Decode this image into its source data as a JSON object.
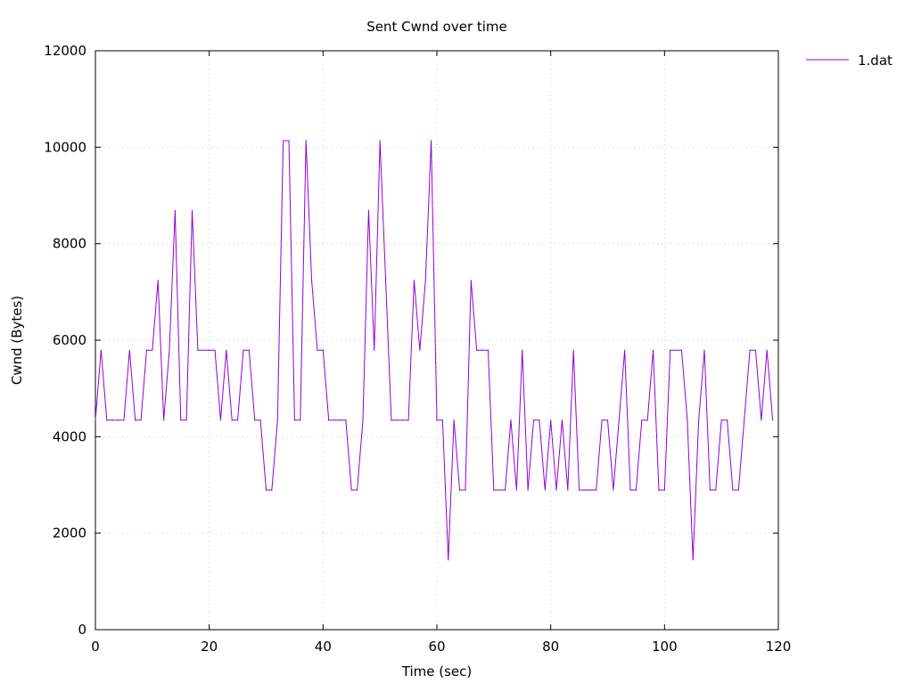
{
  "chart_data": {
    "type": "line",
    "title": "Sent Cwnd over time",
    "xlabel": "Time (sec)",
    "ylabel": "Cwnd (Bytes)",
    "xlim": [
      0,
      120
    ],
    "ylim": [
      0,
      12000
    ],
    "xticks": [
      "0",
      "20",
      "40",
      "60",
      "80",
      "100",
      "120"
    ],
    "yticks": [
      "0",
      "2000",
      "4000",
      "6000",
      "8000",
      "10000",
      "12000"
    ],
    "grid": true,
    "legend": "outside-top-right",
    "series": [
      {
        "name": "1.dat",
        "color": "#9400d3",
        "points": [
          [
            0,
            4344
          ],
          [
            1,
            5792
          ],
          [
            2,
            4344
          ],
          [
            3,
            4344
          ],
          [
            4,
            4344
          ],
          [
            5,
            4344
          ],
          [
            6,
            5792
          ],
          [
            7,
            4344
          ],
          [
            8,
            4344
          ],
          [
            9,
            5792
          ],
          [
            10,
            5792
          ],
          [
            11,
            7240
          ],
          [
            12,
            4344
          ],
          [
            13,
            5792
          ],
          [
            14,
            8688
          ],
          [
            15,
            4344
          ],
          [
            16,
            4344
          ],
          [
            17,
            8688
          ],
          [
            18,
            5792
          ],
          [
            19,
            5792
          ],
          [
            20,
            5792
          ],
          [
            21,
            5792
          ],
          [
            22,
            4344
          ],
          [
            23,
            5792
          ],
          [
            24,
            4344
          ],
          [
            25,
            4344
          ],
          [
            26,
            5792
          ],
          [
            27,
            5792
          ],
          [
            28,
            4344
          ],
          [
            29,
            4344
          ],
          [
            30,
            2896
          ],
          [
            31,
            2896
          ],
          [
            32,
            4344
          ],
          [
            33,
            10136
          ],
          [
            34,
            10136
          ],
          [
            35,
            4344
          ],
          [
            36,
            4344
          ],
          [
            37,
            10136
          ],
          [
            38,
            7240
          ],
          [
            39,
            5792
          ],
          [
            40,
            5792
          ],
          [
            41,
            4344
          ],
          [
            42,
            4344
          ],
          [
            43,
            4344
          ],
          [
            44,
            4344
          ],
          [
            45,
            2896
          ],
          [
            46,
            2896
          ],
          [
            47,
            4344
          ],
          [
            48,
            8688
          ],
          [
            49,
            5792
          ],
          [
            50,
            10136
          ],
          [
            51,
            7240
          ],
          [
            52,
            4344
          ],
          [
            53,
            4344
          ],
          [
            54,
            4344
          ],
          [
            55,
            4344
          ],
          [
            56,
            7240
          ],
          [
            57,
            5792
          ],
          [
            58,
            7240
          ],
          [
            59,
            10136
          ],
          [
            60,
            4344
          ],
          [
            61,
            4344
          ],
          [
            62,
            1448
          ],
          [
            63,
            4344
          ],
          [
            64,
            2896
          ],
          [
            65,
            2896
          ],
          [
            66,
            7240
          ],
          [
            67,
            5792
          ],
          [
            68,
            5792
          ],
          [
            69,
            5792
          ],
          [
            70,
            2896
          ],
          [
            71,
            2896
          ],
          [
            72,
            2896
          ],
          [
            73,
            4344
          ],
          [
            74,
            2896
          ],
          [
            75,
            5792
          ],
          [
            76,
            2896
          ],
          [
            77,
            4344
          ],
          [
            78,
            4344
          ],
          [
            79,
            2896
          ],
          [
            80,
            4344
          ],
          [
            81,
            2896
          ],
          [
            82,
            4344
          ],
          [
            83,
            2896
          ],
          [
            84,
            5792
          ],
          [
            85,
            2896
          ],
          [
            86,
            2896
          ],
          [
            87,
            2896
          ],
          [
            88,
            2896
          ],
          [
            89,
            4344
          ],
          [
            90,
            4344
          ],
          [
            91,
            2896
          ],
          [
            92,
            4344
          ],
          [
            93,
            5792
          ],
          [
            94,
            2896
          ],
          [
            95,
            2896
          ],
          [
            96,
            4344
          ],
          [
            97,
            4344
          ],
          [
            98,
            5792
          ],
          [
            99,
            2896
          ],
          [
            100,
            2896
          ],
          [
            101,
            5792
          ],
          [
            102,
            5792
          ],
          [
            103,
            5792
          ],
          [
            104,
            4344
          ],
          [
            105,
            1448
          ],
          [
            106,
            4344
          ],
          [
            107,
            5792
          ],
          [
            108,
            2896
          ],
          [
            109,
            2896
          ],
          [
            110,
            4344
          ],
          [
            111,
            4344
          ],
          [
            112,
            2896
          ],
          [
            113,
            2896
          ],
          [
            114,
            4344
          ],
          [
            115,
            5792
          ],
          [
            116,
            5792
          ],
          [
            117,
            4344
          ],
          [
            118,
            5792
          ],
          [
            119,
            4344
          ]
        ]
      }
    ]
  }
}
